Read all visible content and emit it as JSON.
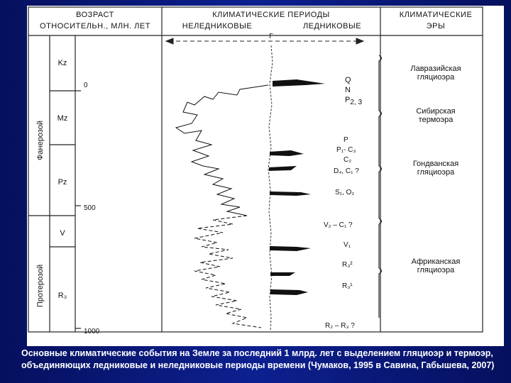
{
  "header": {
    "col1_line1": "ВОЗРАСТ",
    "col1_line2": "ОТНОСИТЕЛЬН., МЛН. ЛЕТ",
    "col2_line1": "КЛИМАТИЧЕСКИЕ ПЕРИОДЫ",
    "col2_nonglacial": "НЕЛЕДНИКОВЫЕ",
    "col2_glacial": "ЛЕДНИКОВЫЕ",
    "col3_line1": "КЛИМАТИЧЕСКИЕ",
    "col3_line2": "ЭРЫ",
    "axis_marker": "Γ"
  },
  "eons": [
    {
      "label": "Фанерозой"
    },
    {
      "label": "Протерозой"
    }
  ],
  "eras": [
    "Kz",
    "Mz",
    "Pz",
    "V",
    "R₃"
  ],
  "ages": [
    "0",
    "500",
    "1000"
  ],
  "periods": [
    {
      "main": "Q"
    },
    {
      "main": "N"
    },
    {
      "main": "P",
      "sub": "2, 3"
    },
    {
      "main": "P",
      "sub": "2"
    },
    {
      "main": "P₁- C₃"
    },
    {
      "main": "C₂"
    },
    {
      "main": "D₄, C₁ ?"
    },
    {
      "main": "S₁, O₂"
    },
    {
      "main": "V₂ – C₁ ?"
    },
    {
      "main": "V₁"
    },
    {
      "main": "R₃²"
    },
    {
      "main": "R₃¹"
    },
    {
      "main": "R₂ – R₃ ?"
    }
  ],
  "climate_eras": [
    {
      "line1": "Лавразийская",
      "line2": "гляциоэра"
    },
    {
      "line1": "Сибирская",
      "line2": "термоэра"
    },
    {
      "line1": "Гондванская",
      "line2": "гляциоэра"
    },
    {
      "line1": "Африканская",
      "line2": "гляциоэра"
    }
  ],
  "caption": "Основные климатические события на Земле за последний 1 млрд. лет с выделением гляциоэр и термоэр, объединяющих ледниковые и неледниковые периоды времени (Чумаков, 1995 в Савина, Габышева, 2007)",
  "colors": {
    "background": "#0b1a72",
    "sheet": "#ffffff",
    "ink": "#111111",
    "caption": "#ffffff"
  }
}
